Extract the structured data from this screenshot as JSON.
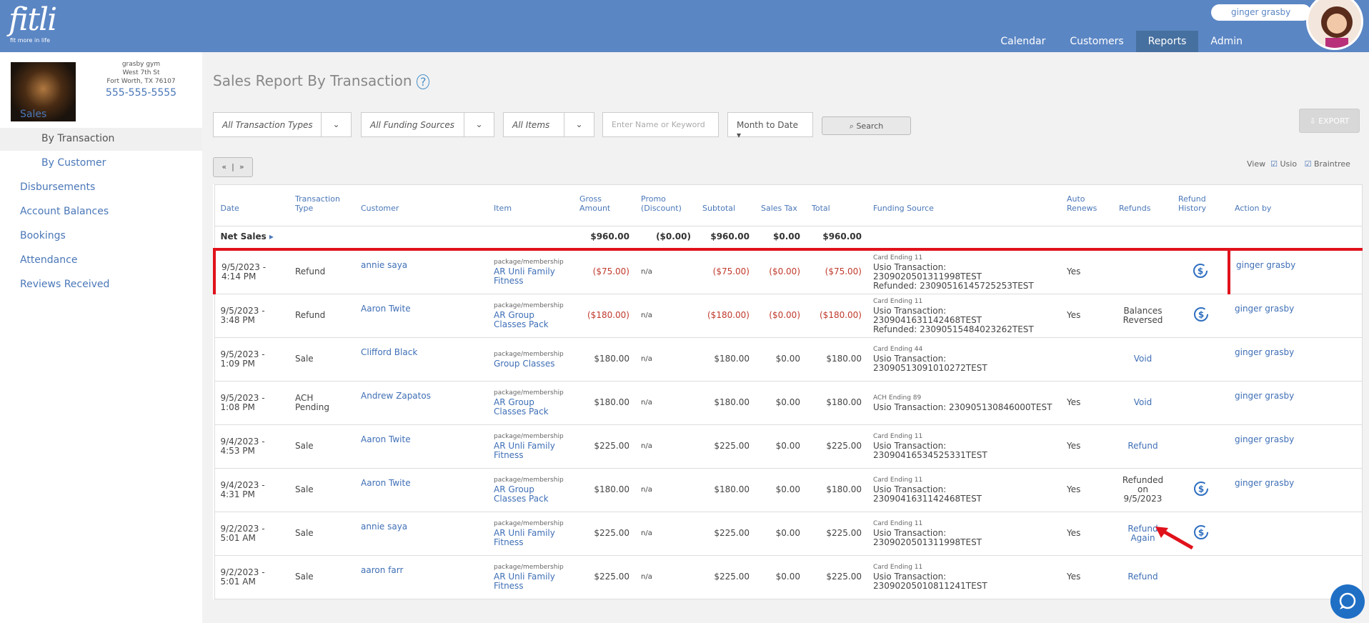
{
  "header": {
    "logo": "fitli",
    "tagline": "fit more in life",
    "user": "ginger grasby",
    "nav": [
      "Calendar",
      "Customers",
      "Reports",
      "Admin"
    ],
    "active_nav": 2
  },
  "sidebar": {
    "gym": {
      "name": "grasby gym",
      "street": "West 7th St",
      "city": "Fort Worth, TX 76107",
      "phone": "555-555-5555"
    },
    "menu": [
      "Sales",
      "By Transaction",
      "By Customer",
      "Disbursements",
      "Account Balances",
      "Bookings",
      "Attendance",
      "Reviews Received"
    ],
    "sub_items": [
      1,
      2
    ],
    "active_item": 1
  },
  "page": {
    "title": "Sales Report By Transaction",
    "filters": [
      "All Transaction Types",
      "All Funding Sources",
      "All Items"
    ],
    "search_placeholder": "Enter Name or Keyword",
    "period": "Month to Date",
    "search": "Search",
    "export": "EXPORT",
    "view": "View",
    "views": [
      "Usio",
      "Braintree"
    ],
    "pager": [
      "«",
      "»"
    ]
  },
  "table": {
    "columns": [
      "Date",
      "Transaction Type",
      "Customer",
      "Item",
      "Gross Amount",
      "Promo (Discount)",
      "Subtotal",
      "Sales Tax",
      "Total",
      "Funding Source",
      "Auto Renews",
      "Refunds",
      "Refund History",
      "Action by"
    ],
    "net_sales": {
      "label": "Net Sales",
      "gross": "$960.00",
      "promo": "($0.00)",
      "subtotal": "$960.00",
      "tax": "$0.00",
      "total": "$960.00"
    },
    "rows": [
      {
        "date": "9/5/2023 - 4:14 PM",
        "type": "Refund",
        "customer": "annie saya",
        "item_kind": "package/membership",
        "item": "AR Unli Family Fitness",
        "gross": "($75.00)",
        "promo": "n/a",
        "subtotal": "($75.00)",
        "tax": "($0.00)",
        "total": "($75.00)",
        "card": "Card Ending 11",
        "funding": [
          "Usio Transaction: 2309020501311998TEST",
          "Refunded: 23090516145725253TEST"
        ],
        "auto": "Yes",
        "history": true,
        "action_by": "ginger grasby",
        "highlight": true
      },
      {
        "date": "9/5/2023 - 3:48 PM",
        "type": "Refund",
        "customer": "Aaron Twite",
        "item_kind": "package/membership",
        "item": "AR Group Classes Pack",
        "gross": "($180.00)",
        "promo": "n/a",
        "subtotal": "($180.00)",
        "tax": "($0.00)",
        "total": "($180.00)",
        "card": "Card Ending 11",
        "funding": [
          "Usio Transaction: 2309041631142468TEST",
          "Refunded: 23090515484023262TEST"
        ],
        "auto": "Yes",
        "refunds": "Balances Reversed",
        "history": true,
        "action_by": "ginger grasby"
      },
      {
        "date": "9/5/2023 - 1:09 PM",
        "type": "Sale",
        "customer": "Clifford Black",
        "item_kind": "package/membership",
        "item": "Group Classes",
        "gross": "$180.00",
        "promo": "n/a",
        "subtotal": "$180.00",
        "tax": "$0.00",
        "total": "$180.00",
        "card": "Card Ending 44",
        "funding": [
          "Usio Transaction: 23090513091010272TEST"
        ],
        "refunds": "Void",
        "refund_link": true,
        "action_by": "ginger grasby"
      },
      {
        "date": "9/5/2023 - 1:08 PM",
        "type": "ACH Pending",
        "customer": "Andrew Zapatos",
        "item_kind": "package/membership",
        "item": "AR Group Classes Pack",
        "gross": "$180.00",
        "promo": "n/a",
        "subtotal": "$180.00",
        "tax": "$0.00",
        "total": "$180.00",
        "card": "ACH Ending 89",
        "funding": [
          "Usio Transaction: 230905130846000TEST"
        ],
        "auto": "Yes",
        "refunds": "Void",
        "refund_link": true,
        "action_by": "ginger grasby"
      },
      {
        "date": "9/4/2023 - 4:53 PM",
        "type": "Sale",
        "customer": "Aaron Twite",
        "item_kind": "package/membership",
        "item": "AR Unli Family Fitness",
        "gross": "$225.00",
        "promo": "n/a",
        "subtotal": "$225.00",
        "tax": "$0.00",
        "total": "$225.00",
        "card": "Card Ending 11",
        "funding": [
          "Usio Transaction: 23090416534525331TEST"
        ],
        "auto": "Yes",
        "refunds": "Refund",
        "refund_link": true,
        "action_by": "ginger grasby"
      },
      {
        "date": "9/4/2023 - 4:31 PM",
        "type": "Sale",
        "customer": "Aaron Twite",
        "item_kind": "package/membership",
        "item": "AR Group Classes Pack",
        "gross": "$180.00",
        "promo": "n/a",
        "subtotal": "$180.00",
        "tax": "$0.00",
        "total": "$180.00",
        "card": "Card Ending 11",
        "funding": [
          "Usio Transaction: 2309041631142468TEST"
        ],
        "auto": "Yes",
        "refunds": "Refunded on 9/5/2023",
        "history": true,
        "action_by": "ginger grasby"
      },
      {
        "date": "9/2/2023 - 5:01 AM",
        "type": "Sale",
        "customer": "annie saya",
        "item_kind": "package/membership",
        "item": "AR Unli Family Fitness",
        "gross": "$225.00",
        "promo": "n/a",
        "subtotal": "$225.00",
        "tax": "$0.00",
        "total": "$225.00",
        "card": "Card Ending 11",
        "funding": [
          "Usio Transaction: 2309020501311998TEST"
        ],
        "auto": "Yes",
        "refunds": "Refund Again",
        "refund_link": true,
        "history": true
      },
      {
        "date": "9/2/2023 - 5:01 AM",
        "type": "Sale",
        "customer": "aaron farr",
        "item_kind": "package/membership",
        "item": "AR Unli Family Fitness",
        "gross": "$225.00",
        "promo": "n/a",
        "subtotal": "$225.00",
        "tax": "$0.00",
        "total": "$225.00",
        "card": "Card Ending 11",
        "funding": [
          "Usio Transaction: 23090205010811241TEST"
        ],
        "auto": "Yes",
        "refunds": "Refund",
        "refund_link": true
      }
    ]
  }
}
